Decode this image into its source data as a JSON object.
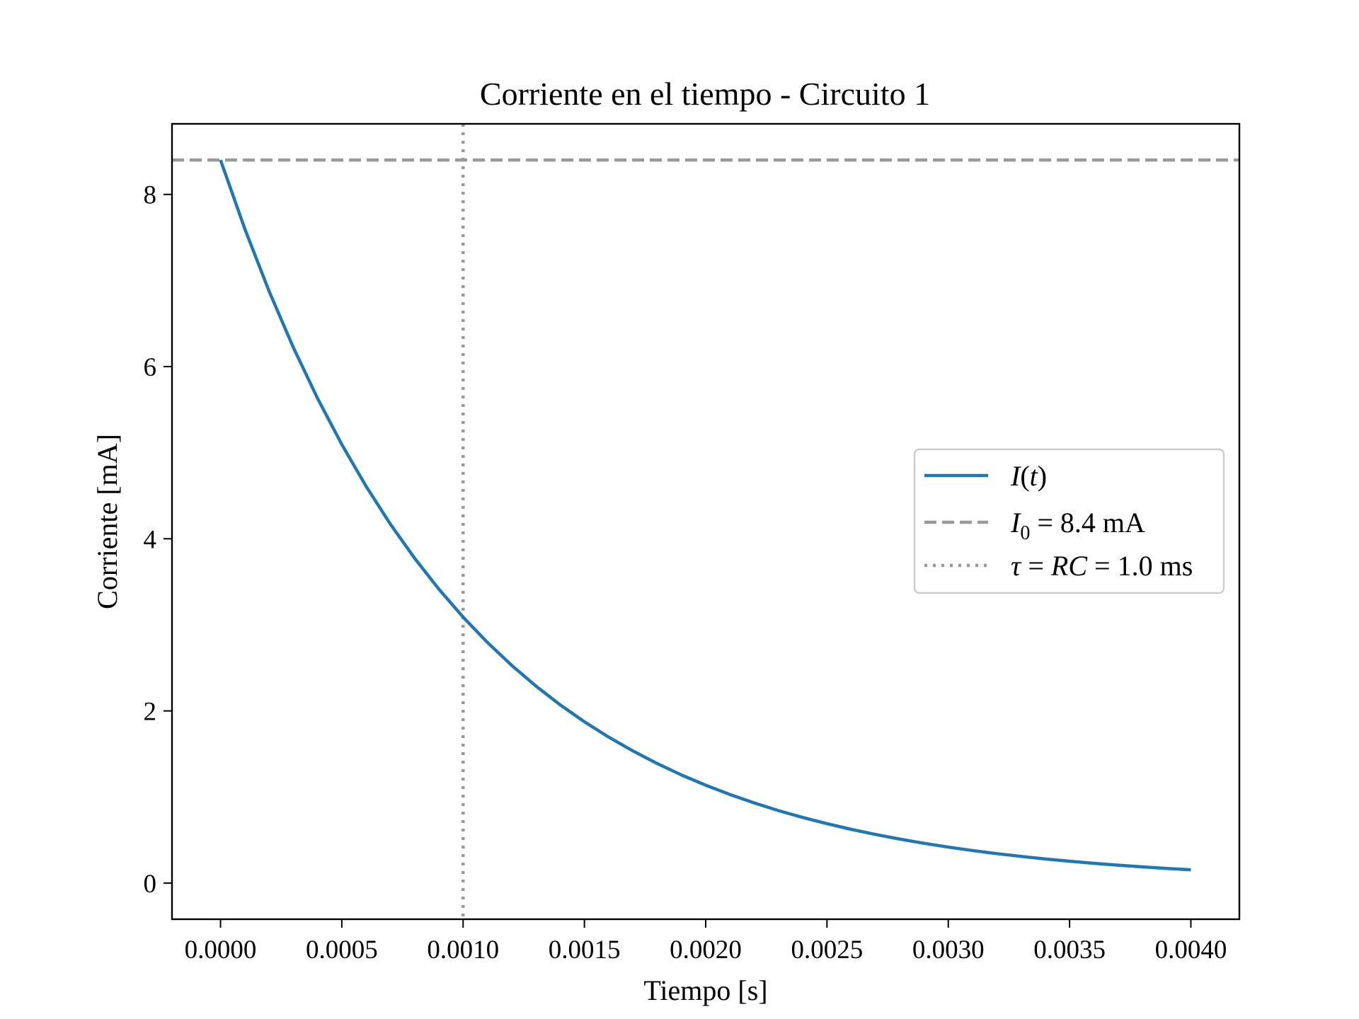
{
  "chart_data": {
    "type": "line",
    "title": "Corriente en el tiempo - Circuito 1",
    "xlabel": "Tiempo [s]",
    "ylabel": "Corriente [mA]",
    "xlim": [
      -0.0002,
      0.0042
    ],
    "ylim": [
      -0.42,
      8.82
    ],
    "grid": false,
    "legend_position": "right",
    "x_ticks": [
      "0.0000",
      "0.0005",
      "0.0010",
      "0.0015",
      "0.0020",
      "0.0025",
      "0.0030",
      "0.0035",
      "0.0040"
    ],
    "x_tick_values": [
      0,
      0.0005,
      0.001,
      0.0015,
      0.002,
      0.0025,
      0.003,
      0.0035,
      0.004
    ],
    "y_ticks": [
      "0",
      "2",
      "4",
      "6",
      "8"
    ],
    "y_tick_values": [
      0,
      2,
      4,
      6,
      8
    ],
    "series": [
      {
        "name": "I(t)",
        "color": "#1f77b4",
        "style": "solid",
        "x": [
          0,
          0.0001,
          0.0002,
          0.0003,
          0.0004,
          0.0005,
          0.0006,
          0.0007,
          0.0008,
          0.0009,
          0.001,
          0.0011,
          0.0012,
          0.0013,
          0.0014,
          0.0015,
          0.0016,
          0.0017,
          0.0018,
          0.0019,
          0.002,
          0.0021,
          0.0022,
          0.0023,
          0.0024,
          0.0025,
          0.0026,
          0.0027,
          0.0028,
          0.0029,
          0.003,
          0.0031,
          0.0032,
          0.0033,
          0.0034,
          0.0035,
          0.0036,
          0.0037,
          0.0038,
          0.0039,
          0.004
        ],
        "y": [
          8.4,
          7.601,
          6.877,
          6.223,
          5.631,
          5.095,
          4.61,
          4.171,
          3.774,
          3.415,
          3.09,
          2.796,
          2.53,
          2.289,
          2.071,
          1.874,
          1.696,
          1.535,
          1.389,
          1.256,
          1.137,
          1.029,
          0.931,
          0.842,
          0.762,
          0.69,
          0.624,
          0.565,
          0.511,
          0.462,
          0.418,
          0.378,
          0.342,
          0.31,
          0.28,
          0.254,
          0.229,
          0.208,
          0.188,
          0.17,
          0.154
        ]
      }
    ],
    "reference_lines": [
      {
        "name": "I0 = 8.4 mA",
        "orientation": "horizontal",
        "value": 8.4,
        "color": "#999999",
        "style": "dashed"
      },
      {
        "name": "tau = RC = 1.0 ms",
        "orientation": "vertical",
        "value": 0.001,
        "color": "#999999",
        "style": "dotted"
      }
    ]
  },
  "legend": {
    "curve_I": "I",
    "curve_paren_open": "(",
    "curve_t": "t",
    "curve_paren_close": ")",
    "i0_symbol": "I",
    "i0_subscript": "0",
    "i0_rest": " = 8.4 mA",
    "tau_symbol": "τ",
    "tau_eq": " = ",
    "tau_rc": "RC",
    "tau_rest": " = 1.0 ms"
  }
}
